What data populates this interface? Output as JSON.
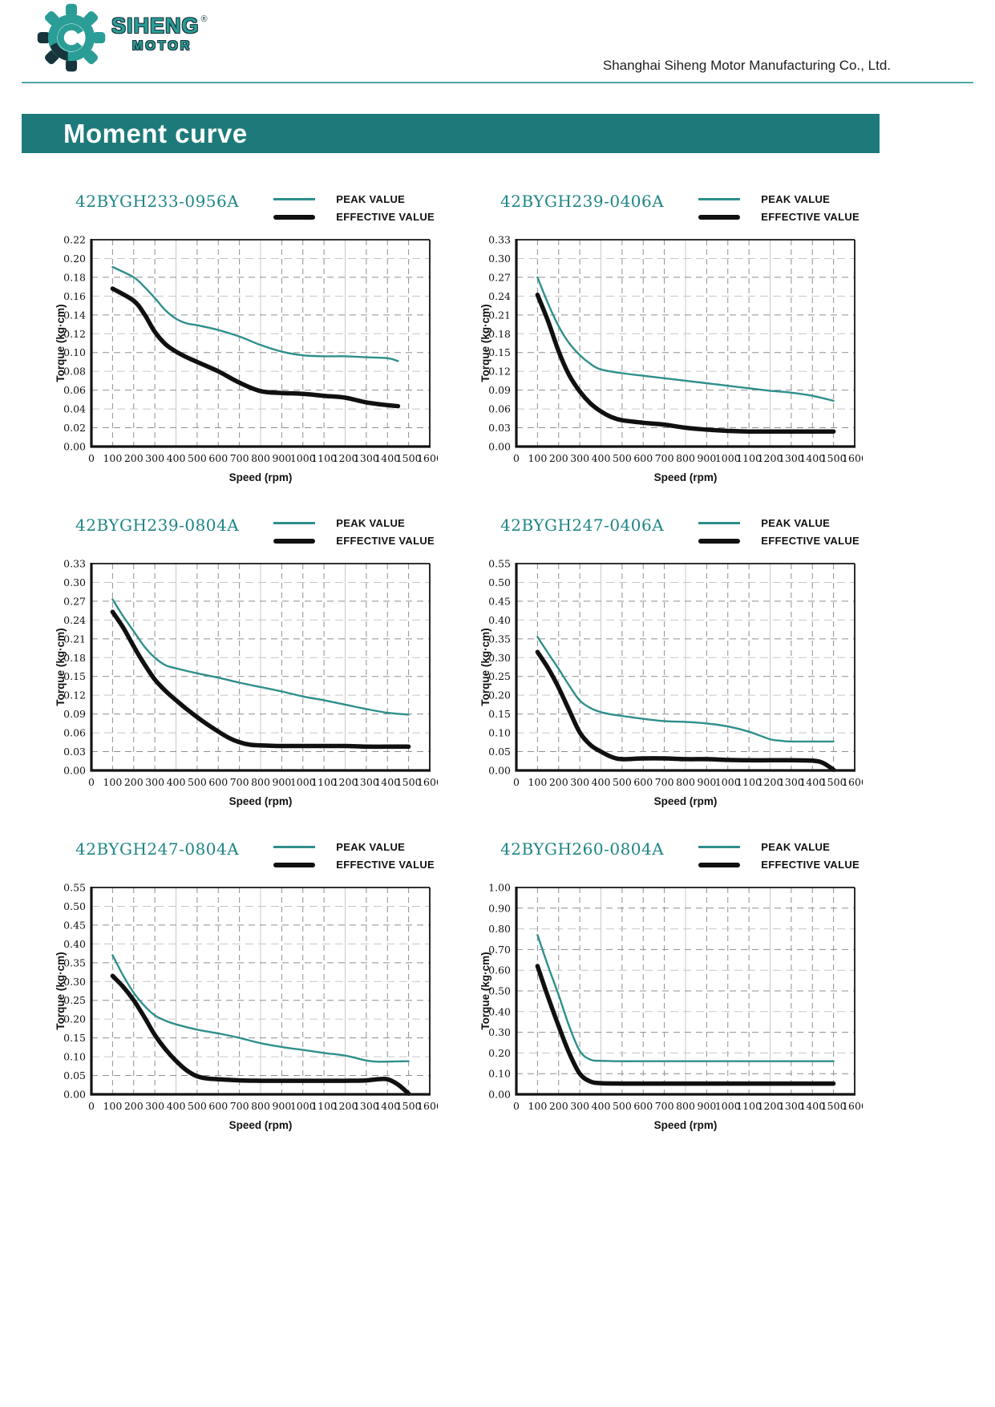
{
  "header": {
    "logo": {
      "brand": "SIHENG",
      "motor": "MOTOR",
      "registered": "®"
    },
    "company": "Shanghai Siheng Motor Manufacturing Co., Ltd."
  },
  "banner": {
    "title": "Moment curve"
  },
  "legend": {
    "peak": "PEAK VALUE",
    "effective": "EFFECTIVE VALUE"
  },
  "colors": {
    "banner_teal": "#1E7A7A",
    "divider_teal": "#4FA6A6",
    "logo_teal": "#2A9D96",
    "logo_dark": "#17343B",
    "title_teal": "#1E8585",
    "curve_teal": "#2E8F8C",
    "curve_black": "#101010"
  },
  "chart_data": [
    {
      "type": "line",
      "title": "42BYGH233-0956A",
      "xlabel": "Speed (rpm)",
      "ylabel": "Torque (kg·cm)",
      "xlim": [
        0,
        1600
      ],
      "xtick_step": 100,
      "ylim": [
        0,
        0.22
      ],
      "ytick_step": 0.02,
      "grid": true,
      "legend_position": "top-right",
      "series": [
        {
          "name": "PEAK VALUE",
          "color": "teal",
          "points": [
            [
              100,
              0.191
            ],
            [
              200,
              0.18
            ],
            [
              250,
              0.17
            ],
            [
              300,
              0.158
            ],
            [
              350,
              0.145
            ],
            [
              400,
              0.136
            ],
            [
              450,
              0.131
            ],
            [
              500,
              0.129
            ],
            [
              600,
              0.124
            ],
            [
              700,
              0.117
            ],
            [
              800,
              0.108
            ],
            [
              900,
              0.101
            ],
            [
              1000,
              0.097
            ],
            [
              1100,
              0.096
            ],
            [
              1200,
              0.096
            ],
            [
              1300,
              0.095
            ],
            [
              1400,
              0.094
            ],
            [
              1450,
              0.091
            ]
          ]
        },
        {
          "name": "EFFECTIVE VALUE",
          "color": "black",
          "points": [
            [
              100,
              0.168
            ],
            [
              200,
              0.155
            ],
            [
              250,
              0.141
            ],
            [
              300,
              0.122
            ],
            [
              350,
              0.109
            ],
            [
              400,
              0.101
            ],
            [
              450,
              0.095
            ],
            [
              500,
              0.09
            ],
            [
              600,
              0.08
            ],
            [
              700,
              0.068
            ],
            [
              800,
              0.059
            ],
            [
              900,
              0.057
            ],
            [
              1000,
              0.056
            ],
            [
              1100,
              0.054
            ],
            [
              1200,
              0.052
            ],
            [
              1300,
              0.047
            ],
            [
              1400,
              0.044
            ],
            [
              1450,
              0.043
            ]
          ]
        }
      ]
    },
    {
      "type": "line",
      "title": "42BYGH239-0406A",
      "xlabel": "Speed (rpm)",
      "ylabel": "Torque (kg·cm)",
      "xlim": [
        0,
        1600
      ],
      "xtick_step": 100,
      "ylim": [
        0,
        0.33
      ],
      "ytick_step": 0.03,
      "grid": true,
      "legend_position": "top-right",
      "series": [
        {
          "name": "PEAK VALUE",
          "color": "teal",
          "points": [
            [
              100,
              0.27
            ],
            [
              150,
              0.228
            ],
            [
              200,
              0.192
            ],
            [
              250,
              0.165
            ],
            [
              300,
              0.146
            ],
            [
              350,
              0.132
            ],
            [
              400,
              0.123
            ],
            [
              500,
              0.117
            ],
            [
              600,
              0.113
            ],
            [
              700,
              0.109
            ],
            [
              800,
              0.105
            ],
            [
              900,
              0.101
            ],
            [
              1000,
              0.097
            ],
            [
              1100,
              0.093
            ],
            [
              1200,
              0.089
            ],
            [
              1300,
              0.086
            ],
            [
              1400,
              0.081
            ],
            [
              1500,
              0.073
            ]
          ]
        },
        {
          "name": "EFFECTIVE VALUE",
          "color": "black",
          "points": [
            [
              100,
              0.242
            ],
            [
              150,
              0.2
            ],
            [
              200,
              0.152
            ],
            [
              250,
              0.114
            ],
            [
              300,
              0.088
            ],
            [
              350,
              0.069
            ],
            [
              400,
              0.056
            ],
            [
              450,
              0.047
            ],
            [
              500,
              0.042
            ],
            [
              600,
              0.038
            ],
            [
              700,
              0.035
            ],
            [
              800,
              0.03
            ],
            [
              900,
              0.027
            ],
            [
              1000,
              0.025
            ],
            [
              1100,
              0.024
            ],
            [
              1200,
              0.024
            ],
            [
              1300,
              0.024
            ],
            [
              1400,
              0.024
            ],
            [
              1500,
              0.024
            ]
          ]
        }
      ]
    },
    {
      "type": "line",
      "title": "42BYGH239-0804A",
      "xlabel": "Speed (rpm)",
      "ylabel": "Torque (kg·cm)",
      "xlim": [
        0,
        1600
      ],
      "xtick_step": 100,
      "ylim": [
        0,
        0.33
      ],
      "ytick_step": 0.03,
      "grid": true,
      "legend_position": "top-right",
      "series": [
        {
          "name": "PEAK VALUE",
          "color": "teal",
          "points": [
            [
              100,
              0.273
            ],
            [
              150,
              0.246
            ],
            [
              200,
              0.222
            ],
            [
              250,
              0.198
            ],
            [
              300,
              0.18
            ],
            [
              350,
              0.168
            ],
            [
              400,
              0.163
            ],
            [
              500,
              0.155
            ],
            [
              600,
              0.148
            ],
            [
              700,
              0.14
            ],
            [
              800,
              0.133
            ],
            [
              900,
              0.126
            ],
            [
              1000,
              0.118
            ],
            [
              1100,
              0.112
            ],
            [
              1200,
              0.105
            ],
            [
              1300,
              0.098
            ],
            [
              1400,
              0.092
            ],
            [
              1500,
              0.089
            ]
          ]
        },
        {
          "name": "EFFECTIVE VALUE",
          "color": "black",
          "points": [
            [
              100,
              0.253
            ],
            [
              150,
              0.228
            ],
            [
              200,
              0.198
            ],
            [
              250,
              0.17
            ],
            [
              300,
              0.145
            ],
            [
              350,
              0.127
            ],
            [
              400,
              0.112
            ],
            [
              450,
              0.098
            ],
            [
              500,
              0.085
            ],
            [
              550,
              0.073
            ],
            [
              600,
              0.062
            ],
            [
              650,
              0.052
            ],
            [
              700,
              0.045
            ],
            [
              750,
              0.041
            ],
            [
              800,
              0.04
            ],
            [
              900,
              0.039
            ],
            [
              1000,
              0.039
            ],
            [
              1100,
              0.039
            ],
            [
              1200,
              0.039
            ],
            [
              1300,
              0.038
            ],
            [
              1400,
              0.038
            ],
            [
              1500,
              0.038
            ]
          ]
        }
      ]
    },
    {
      "type": "line",
      "title": "42BYGH247-0406A",
      "xlabel": "Speed (rpm)",
      "ylabel": "Torque (kg·cm)",
      "xlim": [
        0,
        1600
      ],
      "xtick_step": 100,
      "ylim": [
        0,
        0.55
      ],
      "ytick_step": 0.05,
      "grid": true,
      "legend_position": "top-right",
      "series": [
        {
          "name": "PEAK VALUE",
          "color": "teal",
          "points": [
            [
              100,
              0.355
            ],
            [
              150,
              0.312
            ],
            [
              200,
              0.27
            ],
            [
              250,
              0.226
            ],
            [
              300,
              0.186
            ],
            [
              350,
              0.166
            ],
            [
              400,
              0.155
            ],
            [
              450,
              0.149
            ],
            [
              500,
              0.145
            ],
            [
              600,
              0.137
            ],
            [
              700,
              0.131
            ],
            [
              800,
              0.129
            ],
            [
              900,
              0.125
            ],
            [
              1000,
              0.117
            ],
            [
              1100,
              0.103
            ],
            [
              1200,
              0.083
            ],
            [
              1250,
              0.079
            ],
            [
              1300,
              0.077
            ],
            [
              1400,
              0.077
            ],
            [
              1500,
              0.077
            ]
          ]
        },
        {
          "name": "EFFECTIVE VALUE",
          "color": "black",
          "points": [
            [
              100,
              0.315
            ],
            [
              150,
              0.272
            ],
            [
              200,
              0.22
            ],
            [
              250,
              0.16
            ],
            [
              300,
              0.101
            ],
            [
              350,
              0.068
            ],
            [
              400,
              0.05
            ],
            [
              450,
              0.036
            ],
            [
              500,
              0.03
            ],
            [
              600,
              0.032
            ],
            [
              700,
              0.032
            ],
            [
              800,
              0.03
            ],
            [
              900,
              0.03
            ],
            [
              1000,
              0.028
            ],
            [
              1100,
              0.027
            ],
            [
              1200,
              0.027
            ],
            [
              1300,
              0.027
            ],
            [
              1400,
              0.026
            ],
            [
              1450,
              0.02
            ],
            [
              1500,
              0.002
            ]
          ]
        }
      ]
    },
    {
      "type": "line",
      "title": "42BYGH247-0804A",
      "xlabel": "Speed (rpm)",
      "ylabel": "Torque (kg·cm)",
      "xlim": [
        0,
        1600
      ],
      "xtick_step": 100,
      "ylim": [
        0,
        0.55
      ],
      "ytick_step": 0.05,
      "grid": true,
      "legend_position": "top-right",
      "series": [
        {
          "name": "PEAK VALUE",
          "color": "teal",
          "points": [
            [
              100,
              0.37
            ],
            [
              150,
              0.316
            ],
            [
              200,
              0.27
            ],
            [
              250,
              0.236
            ],
            [
              300,
              0.21
            ],
            [
              350,
              0.196
            ],
            [
              400,
              0.186
            ],
            [
              500,
              0.172
            ],
            [
              600,
              0.162
            ],
            [
              700,
              0.15
            ],
            [
              800,
              0.136
            ],
            [
              900,
              0.126
            ],
            [
              1000,
              0.118
            ],
            [
              1100,
              0.11
            ],
            [
              1200,
              0.103
            ],
            [
              1300,
              0.09
            ],
            [
              1350,
              0.087
            ],
            [
              1400,
              0.087
            ],
            [
              1500,
              0.088
            ]
          ]
        },
        {
          "name": "EFFECTIVE VALUE",
          "color": "black",
          "points": [
            [
              100,
              0.315
            ],
            [
              150,
              0.286
            ],
            [
              200,
              0.25
            ],
            [
              250,
              0.206
            ],
            [
              300,
              0.158
            ],
            [
              350,
              0.12
            ],
            [
              400,
              0.089
            ],
            [
              450,
              0.064
            ],
            [
              500,
              0.048
            ],
            [
              550,
              0.042
            ],
            [
              600,
              0.04
            ],
            [
              700,
              0.037
            ],
            [
              800,
              0.036
            ],
            [
              900,
              0.036
            ],
            [
              1000,
              0.036
            ],
            [
              1100,
              0.036
            ],
            [
              1200,
              0.036
            ],
            [
              1300,
              0.037
            ],
            [
              1350,
              0.04
            ],
            [
              1400,
              0.04
            ],
            [
              1450,
              0.026
            ],
            [
              1500,
              0.002
            ]
          ]
        }
      ]
    },
    {
      "type": "line",
      "title": "42BYGH260-0804A",
      "xlabel": "Speed (rpm)",
      "ylabel": "Torque (kg·cm)",
      "xlim": [
        0,
        1600
      ],
      "xtick_step": 100,
      "ylim": [
        0,
        1.0
      ],
      "ytick_step": 0.1,
      "grid": true,
      "legend_position": "top-right",
      "series": [
        {
          "name": "PEAK VALUE",
          "color": "teal",
          "points": [
            [
              100,
              0.77
            ],
            [
              150,
              0.62
            ],
            [
              200,
              0.48
            ],
            [
              250,
              0.33
            ],
            [
              300,
              0.21
            ],
            [
              350,
              0.168
            ],
            [
              400,
              0.162
            ],
            [
              500,
              0.16
            ],
            [
              600,
              0.16
            ],
            [
              700,
              0.16
            ],
            [
              800,
              0.16
            ],
            [
              900,
              0.16
            ],
            [
              1000,
              0.16
            ],
            [
              1100,
              0.16
            ],
            [
              1200,
              0.16
            ],
            [
              1300,
              0.16
            ],
            [
              1400,
              0.16
            ],
            [
              1500,
              0.16
            ]
          ]
        },
        {
          "name": "EFFECTIVE VALUE",
          "color": "black",
          "points": [
            [
              100,
              0.62
            ],
            [
              150,
              0.47
            ],
            [
              200,
              0.33
            ],
            [
              250,
              0.2
            ],
            [
              300,
              0.1
            ],
            [
              350,
              0.062
            ],
            [
              400,
              0.054
            ],
            [
              500,
              0.052
            ],
            [
              600,
              0.052
            ],
            [
              700,
              0.052
            ],
            [
              800,
              0.052
            ],
            [
              900,
              0.052
            ],
            [
              1000,
              0.052
            ],
            [
              1100,
              0.052
            ],
            [
              1200,
              0.052
            ],
            [
              1300,
              0.052
            ],
            [
              1400,
              0.052
            ],
            [
              1500,
              0.052
            ]
          ]
        }
      ]
    }
  ]
}
